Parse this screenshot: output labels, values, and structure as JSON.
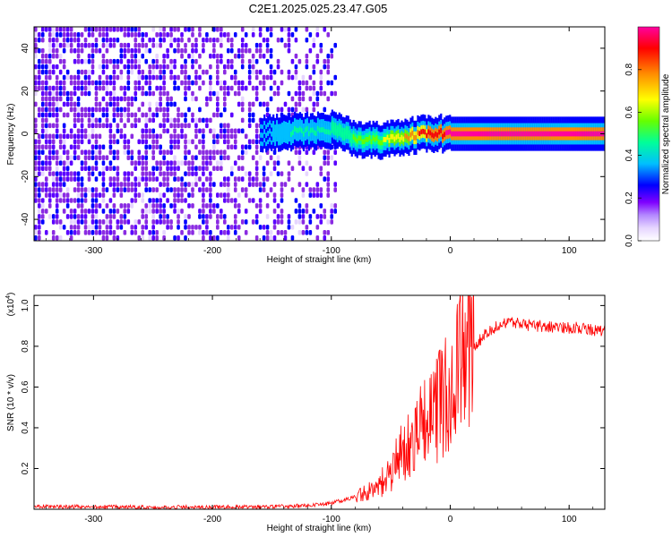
{
  "title": "C2E1.2025.025.23.47.G05",
  "chart_data": [
    {
      "type": "heatmap",
      "xlabel": "Height of straight line (km)",
      "ylabel": "Frequency (Hz)",
      "xlim": [
        -350,
        130
      ],
      "ylim": [
        -50,
        50
      ],
      "xticks": [
        -300,
        -200,
        -100,
        0,
        100
      ],
      "yticks": [
        -40,
        -20,
        0,
        20,
        40
      ],
      "colorbar": {
        "label": "Normalized spectral amplitude",
        "range": [
          0,
          1
        ],
        "ticks": [
          0.0,
          0.2,
          0.4,
          0.6,
          0.8
        ],
        "tick_labels": [
          "0.0",
          "0.2",
          "0.4",
          "0.6",
          "0.8"
        ],
        "colors": [
          "#ffffff",
          "#e6d5ff",
          "#8a2be2",
          "#5a00ff",
          "#0000ff",
          "#00bfff",
          "#00ff99",
          "#66ff00",
          "#ffff00",
          "#ff8c00",
          "#ff0000",
          "#ff00a0"
        ]
      },
      "noise_region_x": [
        -350,
        -95
      ],
      "signal_track": {
        "x": [
          -160,
          -140,
          -120,
          -100,
          -85,
          -75,
          -60,
          -45,
          -35,
          -25,
          -15,
          -5,
          0,
          50,
          130
        ],
        "freq": [
          0,
          1,
          1,
          2,
          -1,
          -3,
          -3,
          -2,
          -1,
          0,
          0,
          0,
          0,
          0,
          0
        ],
        "amplitude": [
          0.3,
          0.35,
          0.4,
          0.45,
          0.45,
          0.5,
          0.55,
          0.6,
          0.7,
          0.8,
          0.85,
          0.9,
          0.95,
          0.95,
          0.95
        ]
      }
    },
    {
      "type": "line",
      "xlabel": "Height of straight line (km)",
      "ylabel": "SNR (10 * v/v)",
      "yscale_label": "(x10",
      "yscale_exp": "4",
      "yscale_close": ")",
      "xlim": [
        -350,
        130
      ],
      "ylim": [
        0,
        1.05
      ],
      "xticks": [
        -300,
        -200,
        -100,
        0,
        100
      ],
      "yticks": [
        0.2,
        0.4,
        0.6,
        0.8,
        1.0
      ],
      "color": "#ff0000",
      "series": [
        {
          "x": [
            -350,
            -300,
            -250,
            -200,
            -150,
            -120,
            -100,
            -85,
            -70,
            -60,
            -50,
            -40,
            -30,
            -20,
            -10,
            0,
            10,
            20,
            30,
            40,
            50,
            60,
            70,
            80,
            90,
            100,
            110,
            120,
            130
          ],
          "y": [
            0.015,
            0.012,
            0.01,
            0.01,
            0.012,
            0.018,
            0.03,
            0.05,
            0.08,
            0.12,
            0.18,
            0.28,
            0.36,
            0.42,
            0.5,
            0.6,
            0.72,
            0.8,
            0.86,
            0.9,
            0.92,
            0.91,
            0.9,
            0.9,
            0.89,
            0.89,
            0.89,
            0.88,
            0.88
          ]
        }
      ]
    }
  ]
}
